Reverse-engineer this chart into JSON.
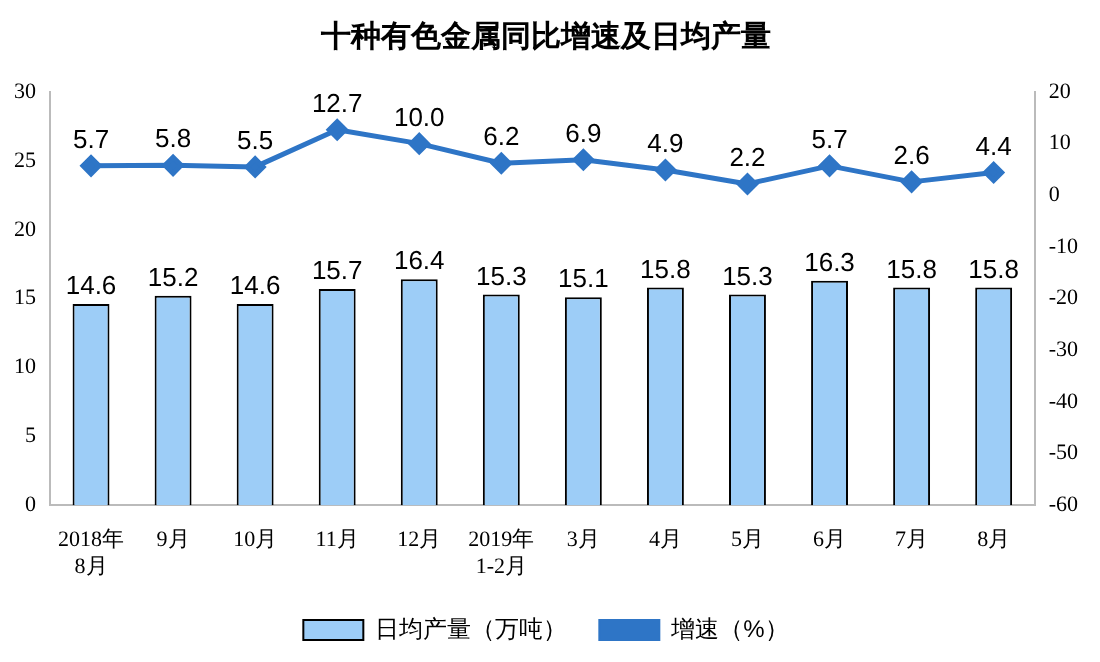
{
  "chart_data": {
    "type": "bar",
    "title": "十种有色金属同比增速及日均产量",
    "categories": [
      "2018年\n8月",
      "9月",
      "10月",
      "11月",
      "12月",
      "2019年\n1-2月",
      "3月",
      "4月",
      "5月",
      "6月",
      "7月",
      "8月"
    ],
    "series": [
      {
        "name": "日均产量（万吨）",
        "color": "#9dcdf7",
        "values": [
          14.6,
          15.2,
          14.6,
          15.7,
          16.4,
          15.3,
          15.1,
          15.8,
          15.3,
          16.3,
          15.8,
          15.8
        ],
        "value_labels": [
          "14.6",
          "15.2",
          "14.6",
          "15.7",
          "16.4",
          "15.3",
          "15.1",
          "15.8",
          "15.3",
          "16.3",
          "15.8",
          "15.8"
        ]
      },
      {
        "name": "增速（%）",
        "type": "line",
        "axis": "y2",
        "color": "#2e75c6",
        "marker": "diamond",
        "values": [
          5.7,
          5.8,
          5.5,
          12.7,
          10.0,
          6.2,
          6.9,
          4.9,
          2.2,
          5.7,
          2.6,
          4.4
        ],
        "value_labels": [
          "5.7",
          "5.8",
          "5.5",
          "12.7",
          "10.0",
          "6.2",
          "6.9",
          "4.9",
          "2.2",
          "5.7",
          "2.6",
          "4.4"
        ]
      }
    ],
    "ylim": [
      0,
      30
    ],
    "yticks": [
      0,
      5,
      10,
      15,
      20,
      25,
      30
    ],
    "y2lim": [
      -60,
      20
    ],
    "y2ticks": [
      -60,
      -50,
      -40,
      -30,
      -20,
      -10,
      0,
      10,
      20
    ],
    "grid": false,
    "legend": "bottom"
  }
}
